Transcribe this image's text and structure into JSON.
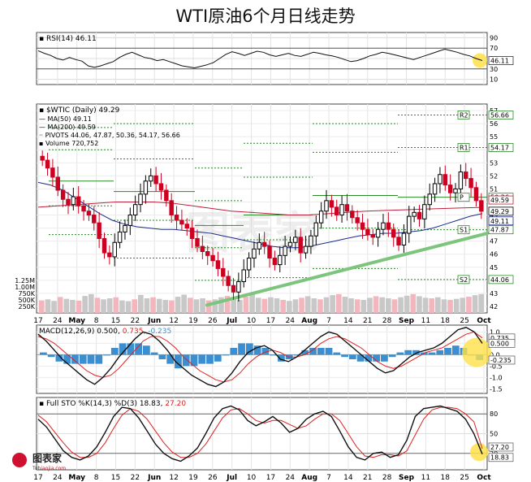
{
  "title": "WTI原油6个月日线走势",
  "watermark": "图表家",
  "logo": {
    "text": "图表家",
    "sub": "Tubiaojia.com"
  },
  "rsi_panel": {
    "label": "RSI(14) 46.11",
    "levels": [
      "90",
      "70",
      "50",
      "30",
      "10"
    ],
    "current": "46.11"
  },
  "price_panel": {
    "header": "$WTIC (Daily) 49.29",
    "ma50": "MA(50) 49.11",
    "ma200": "MA(200) 49.59",
    "pivots": "PIVOTS 44.06, 47.87, 50.36, 54.17, 56.66",
    "volume": "Volume 720,752",
    "pivot_tags": [
      {
        "name": "R2",
        "value": "56.66",
        "y": 56.66
      },
      {
        "name": "R1",
        "value": "54.17",
        "y": 54.17
      },
      {
        "name": "P",
        "value": "50.36",
        "y": 50.36
      },
      {
        "name": "S1",
        "value": "47.87",
        "y": 47.87
      },
      {
        "name": "S2",
        "value": "44.06",
        "y": 44.06
      }
    ],
    "current_tags": [
      {
        "value": "49.59",
        "y": 49.59,
        "color": "#c0203a"
      },
      {
        "value": "49.29",
        "y": 49.29,
        "color": "#000000"
      },
      {
        "value": "49.11",
        "y": 49.11,
        "color": "#1a2c8c"
      }
    ],
    "ticks": [
      "57",
      "56",
      "55",
      "54",
      "53",
      "52",
      "51",
      "50",
      "49",
      "48",
      "47",
      "46",
      "45",
      "44",
      "43",
      "42"
    ],
    "volume_ticks": [
      "1.25M",
      "1.00M",
      "750K",
      "500K",
      "250K"
    ]
  },
  "macd_panel": {
    "label_main": "MACD(12,26,9) 0.500,",
    "label_signal": "0.735,",
    "label_hist": "-0.235",
    "tags": [
      {
        "value": "0.735",
        "y": 0.735
      },
      {
        "value": "0.500",
        "y": 0.5
      },
      {
        "value": "-0.235",
        "y": -0.235
      }
    ],
    "ticks": [
      "1.0",
      "0.5",
      "0.0",
      "-0.5",
      "-1.0",
      "-1.5"
    ]
  },
  "sto_panel": {
    "label_main": "Full STO %K(14,3) %D(3) 18.83,",
    "label_d": "27.20",
    "tags": [
      {
        "value": "27.20",
        "y": 27.2
      },
      {
        "value": "18.83",
        "y": 18.83
      }
    ],
    "ticks": [
      "80",
      "50",
      "20"
    ]
  },
  "x_axis": [
    "17",
    "24",
    "May",
    "8",
    "15",
    "22",
    "Jun",
    "12",
    "19",
    "26",
    "Jul",
    "10",
    "17",
    "24",
    "Aug",
    "7",
    "14",
    "21",
    "28",
    "Sep",
    "11",
    "18",
    "25",
    "Oct"
  ],
  "colors": {
    "up": "#000000",
    "down": "#cc0020",
    "ma50": "#1a2c8c",
    "ma200": "#c0203a",
    "pivot": "#2a8a2a",
    "trend": "#7dc47d",
    "highlight": "#ffe14a"
  },
  "chart_data": [
    {
      "type": "line",
      "title": "RSI(14) 46.11",
      "ylim": [
        10,
        90
      ],
      "series": [
        {
          "name": "RSI(14)",
          "values": [
            65,
            60,
            56,
            50,
            47,
            52,
            48,
            45,
            36,
            33,
            36,
            40,
            44,
            52,
            58,
            62,
            57,
            52,
            50,
            46,
            48,
            44,
            40,
            36,
            34,
            32,
            35,
            38,
            42,
            50,
            58,
            63,
            60,
            56,
            60,
            64,
            62,
            57,
            54,
            57,
            60,
            56,
            54,
            58,
            62,
            60,
            57,
            55,
            52,
            48,
            44,
            46,
            50,
            55,
            58,
            62,
            60,
            57,
            54,
            51,
            48,
            52,
            56,
            60,
            64,
            68,
            65,
            62,
            58,
            55,
            50,
            46.11
          ]
        }
      ]
    },
    {
      "type": "line",
      "title": "$WTIC (Daily) 49.29",
      "ylim": [
        42,
        57
      ],
      "series": [
        {
          "name": "$WTIC",
          "values": [
            53.2,
            52.6,
            51.9,
            50.9,
            50.2,
            49.8,
            50.4,
            49.7,
            49.3,
            49.0,
            48.4,
            47.2,
            46.1,
            45.8,
            46.9,
            47.7,
            48.2,
            49.0,
            49.8,
            50.6,
            51.6,
            52.0,
            51.4,
            50.9,
            50.1,
            49.0,
            48.6,
            48.3,
            48.0,
            47.2,
            46.6,
            46.2,
            45.9,
            45.5,
            44.9,
            44.3,
            43.6,
            43.1,
            43.9,
            44.8,
            45.7,
            46.4,
            46.9,
            46.6,
            45.7,
            45.2,
            45.9,
            46.6,
            46.9,
            47.3,
            46.1,
            46.6,
            47.4,
            48.4,
            49.3,
            50.1,
            49.6,
            49.0,
            49.8,
            49.3,
            48.8,
            48.4,
            47.9,
            47.5,
            47.3,
            47.9,
            48.4,
            47.9,
            47.3,
            46.7,
            47.6,
            48.9,
            49.2,
            48.7,
            49.8,
            50.6,
            51.4,
            52.1,
            51.3,
            50.7,
            51.0,
            52.3,
            51.8,
            51.1,
            50.1,
            49.29
          ]
        },
        {
          "name": "MA(50) 49.11",
          "values": [
            51.5,
            51.3,
            50.9,
            50.3,
            49.7,
            49.1,
            48.6,
            48.3,
            48.1,
            48.0,
            47.9,
            47.9,
            47.8,
            47.7,
            47.6,
            47.4,
            47.2,
            47.0,
            46.8,
            46.6,
            46.5,
            46.5,
            46.6,
            46.8,
            47.0,
            47.2,
            47.4,
            47.5,
            47.6,
            47.6,
            47.7,
            47.8,
            48.0,
            48.3,
            48.6,
            48.9,
            49.11
          ]
        },
        {
          "name": "MA(200) 49.59",
          "values": [
            49.6,
            49.7,
            49.8,
            49.9,
            50.0,
            50.0,
            50.0,
            49.9,
            49.7,
            49.5,
            49.3,
            49.2,
            49.1,
            49.0,
            49.0,
            49.1,
            49.2,
            49.3,
            49.35,
            49.4,
            49.45,
            49.5,
            49.55,
            49.59
          ]
        }
      ]
    },
    {
      "type": "bar",
      "title": "Volume 720,752",
      "ylim": [
        0,
        1400000
      ],
      "series": [
        {
          "name": "Volume",
          "values": [
            480000,
            520000,
            460000,
            610000,
            540000,
            500000,
            470000,
            650000,
            720000,
            580000,
            520000,
            560000,
            600000,
            480000,
            450000,
            520000,
            690000,
            560000,
            600000,
            540000,
            500000,
            480000,
            620000,
            700000,
            580000,
            520000,
            560000,
            480000,
            520000,
            600000,
            650000,
            560000,
            500000,
            620000,
            720000,
            580000,
            540000,
            600000,
            560000,
            500000,
            460000,
            520000,
            580000,
            640000,
            560000,
            520000,
            600000,
            680000,
            720000,
            620000,
            560000,
            520000,
            500000,
            580000,
            640000,
            600000,
            560000,
            520000,
            600000,
            660000,
            720000,
            640000,
            580000,
            560000,
            600000,
            520000,
            500000,
            540000,
            580000,
            620000,
            680000,
            720752
          ]
        }
      ]
    },
    {
      "type": "line",
      "title": "MACD(12,26,9) 0.500, 0.735, -0.235",
      "ylim": [
        -1.7,
        1.3
      ],
      "series": [
        {
          "name": "MACD",
          "values": [
            0.9,
            0.6,
            0.2,
            -0.2,
            -0.5,
            -0.8,
            -1.1,
            -1.3,
            -1.0,
            -0.6,
            -0.1,
            0.3,
            0.7,
            1.0,
            0.9,
            0.6,
            0.2,
            -0.3,
            -0.6,
            -0.9,
            -1.1,
            -1.3,
            -1.4,
            -1.2,
            -0.8,
            -0.3,
            0.1,
            0.3,
            0.4,
            0.2,
            -0.2,
            -0.3,
            -0.1,
            0.2,
            0.5,
            0.8,
            1.0,
            0.9,
            0.6,
            0.3,
            0.0,
            -0.3,
            -0.6,
            -0.8,
            -0.7,
            -0.4,
            -0.1,
            0.1,
            0.2,
            0.3,
            0.5,
            0.8,
            1.1,
            1.2,
            1.0,
            0.5
          ]
        },
        {
          "name": "Signal",
          "values": [
            0.8,
            0.7,
            0.5,
            0.2,
            -0.1,
            -0.4,
            -0.7,
            -0.9,
            -1.0,
            -0.9,
            -0.6,
            -0.2,
            0.2,
            0.6,
            0.8,
            0.8,
            0.6,
            0.3,
            -0.1,
            -0.4,
            -0.7,
            -0.9,
            -1.1,
            -1.2,
            -1.1,
            -0.8,
            -0.4,
            -0.1,
            0.1,
            0.2,
            0.1,
            -0.1,
            -0.1,
            0.0,
            0.2,
            0.5,
            0.7,
            0.8,
            0.7,
            0.5,
            0.3,
            0.0,
            -0.3,
            -0.5,
            -0.6,
            -0.5,
            -0.3,
            -0.1,
            0.1,
            0.2,
            0.3,
            0.5,
            0.7,
            0.9,
            1.0,
            0.735
          ]
        }
      ]
    },
    {
      "type": "line",
      "title": "Full STO %K(14,3) %D(3) 18.83, 27.20",
      "ylim": [
        0,
        100
      ],
      "series": [
        {
          "name": "%K",
          "values": [
            72,
            60,
            42,
            24,
            14,
            10,
            16,
            30,
            52,
            76,
            90,
            88,
            74,
            54,
            34,
            20,
            12,
            8,
            16,
            28,
            50,
            74,
            88,
            92,
            86,
            70,
            62,
            68,
            76,
            66,
            52,
            58,
            72,
            80,
            84,
            76,
            54,
            30,
            14,
            10,
            20,
            22,
            14,
            18,
            40,
            76,
            88,
            90,
            92,
            88,
            84,
            72,
            50,
            18.83
          ]
        },
        {
          "name": "%D",
          "values": [
            78,
            68,
            52,
            36,
            22,
            14,
            14,
            20,
            36,
            58,
            78,
            88,
            84,
            72,
            54,
            36,
            22,
            14,
            14,
            20,
            34,
            54,
            74,
            86,
            88,
            80,
            70,
            66,
            70,
            70,
            64,
            58,
            62,
            72,
            80,
            80,
            70,
            50,
            30,
            16,
            14,
            18,
            18,
            16,
            24,
            48,
            72,
            86,
            90,
            90,
            88,
            80,
            68,
            27.2
          ]
        }
      ]
    }
  ]
}
